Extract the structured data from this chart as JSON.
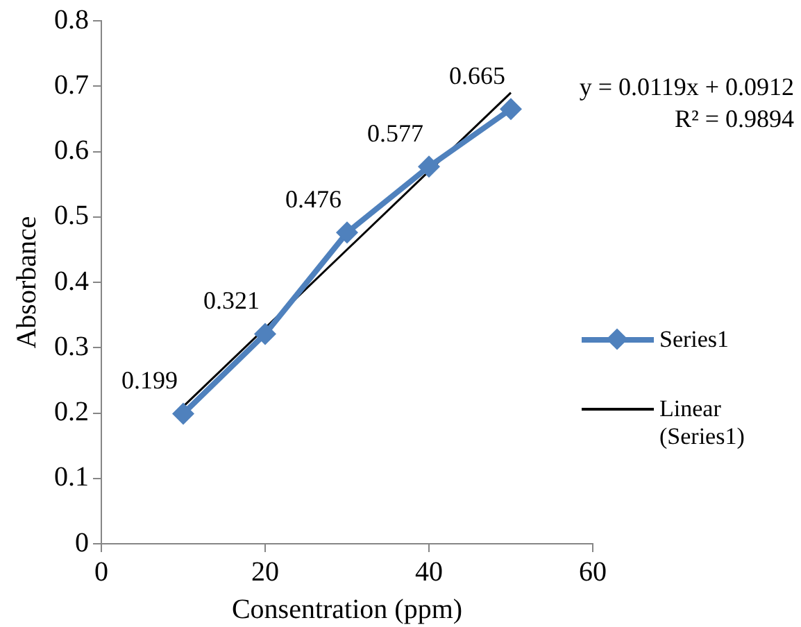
{
  "chart_data": {
    "type": "line",
    "xlabel": "Consentration (ppm)",
    "ylabel": "Absorbance",
    "x": [
      10,
      20,
      30,
      40,
      50
    ],
    "series": [
      {
        "name": "Series1",
        "color": "#4f81bd",
        "values": [
          0.199,
          0.321,
          0.476,
          0.577,
          0.665
        ],
        "marker": "diamond",
        "data_labels": true
      },
      {
        "name": "Linear (Series1)",
        "color": "#000000",
        "type": "line",
        "x": [
          10,
          50
        ],
        "values": [
          0.21,
          0.69
        ],
        "marker": "none"
      }
    ],
    "xlim": [
      0,
      60
    ],
    "xticks": [
      0,
      20,
      40,
      60
    ],
    "ylim": [
      0,
      0.8
    ],
    "yticks": [
      0,
      0.1,
      0.2,
      0.3,
      0.4,
      0.5,
      0.6,
      0.7,
      0.8
    ],
    "grid": false,
    "legend": "right",
    "annotations": [
      "y = 0.0119x + 0.0912",
      "R² = 0.9894"
    ]
  }
}
